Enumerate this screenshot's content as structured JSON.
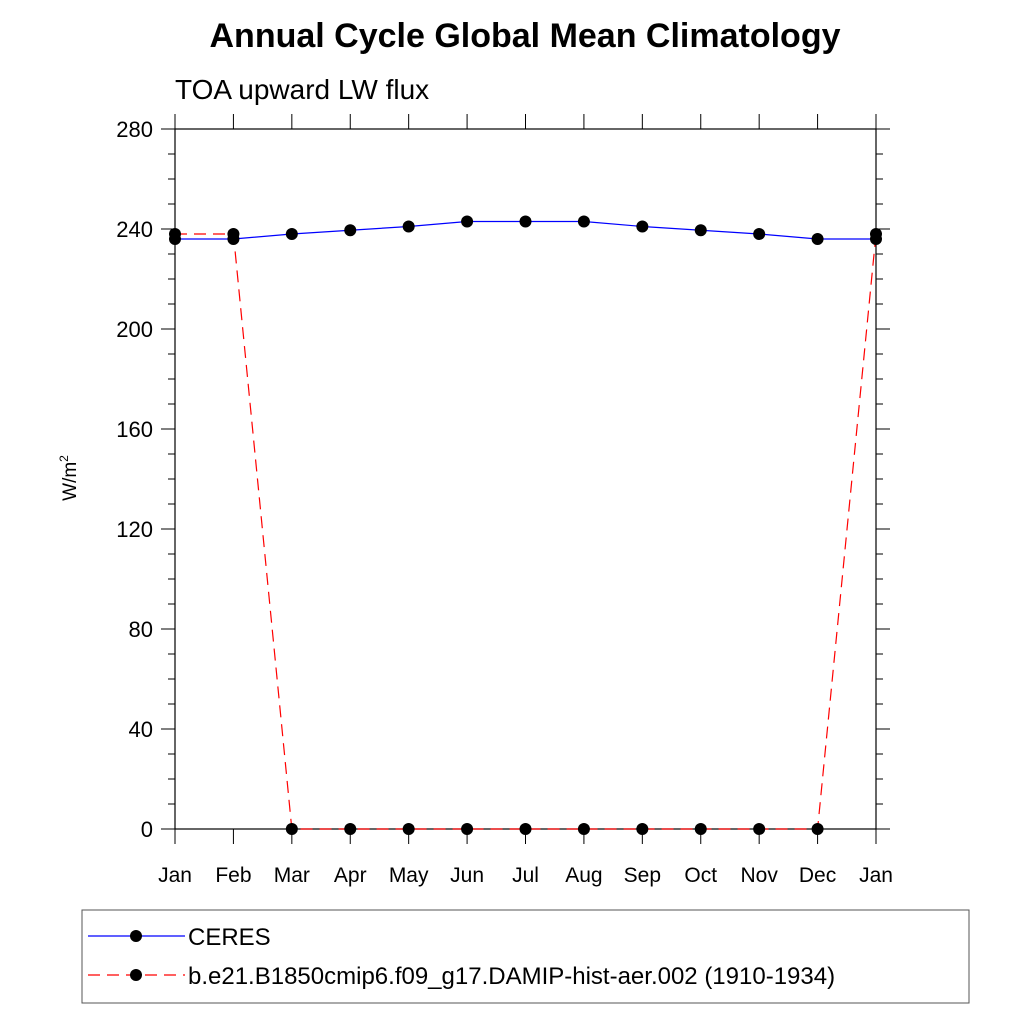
{
  "chart_data": {
    "type": "line",
    "title": "Annual Cycle Global Mean Climatology",
    "subtitle": "TOA upward LW flux",
    "ylabel": "W/m",
    "ylabel_superscript": "2",
    "ylim": [
      0,
      280
    ],
    "yticks": [
      "0",
      "40",
      "80",
      "120",
      "160",
      "200",
      "240",
      "280"
    ],
    "categories": [
      "Jan",
      "Feb",
      "Mar",
      "Apr",
      "May",
      "Jun",
      "Jul",
      "Aug",
      "Sep",
      "Oct",
      "Nov",
      "Dec",
      "Jan"
    ],
    "grid": false,
    "legend_position": "bottom",
    "series": [
      {
        "name": "CERES",
        "color": "#0000ff",
        "line_style": "solid",
        "marker": "filled-circle",
        "values": [
          236,
          236,
          238,
          239.5,
          241,
          243,
          243,
          243,
          241,
          239.5,
          238,
          236,
          236
        ]
      },
      {
        "name": "b.e21.B1850cmip6.f09_g17.DAMIP-hist-aer.002 (1910-1934)",
        "color": "#ff0000",
        "line_style": "dashed",
        "marker": "filled-circle",
        "values": [
          238,
          238,
          0,
          0,
          0,
          0,
          0,
          0,
          0,
          0,
          0,
          0,
          238
        ]
      }
    ]
  }
}
